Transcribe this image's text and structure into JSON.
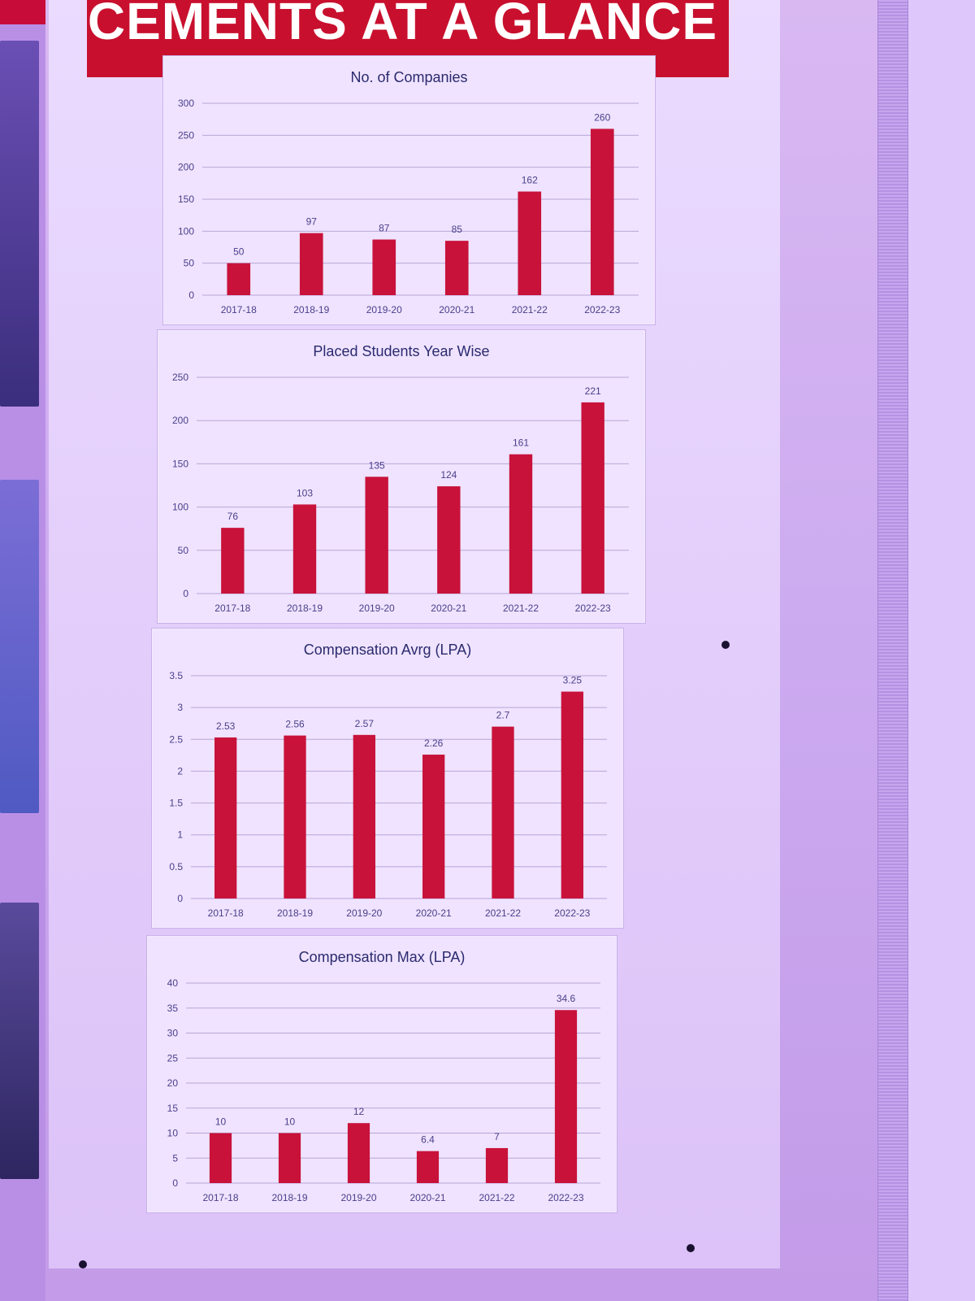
{
  "banner": {
    "title": "ACEMENTS AT A GLANCE"
  },
  "colors": {
    "bar": "#c8123a",
    "grid": "#b9a6d6",
    "axis_text": "#4a3f8a",
    "title_text": "#2b2a6e",
    "banner": "#c8102e"
  },
  "chart_data": [
    {
      "type": "bar",
      "title": "No. of Companies",
      "xlabel": "",
      "ylabel": "",
      "categories": [
        "2017-18",
        "2018-19",
        "2019-20",
        "2020-21",
        "2021-22",
        "2022-23"
      ],
      "values": [
        50,
        97,
        87,
        85,
        162,
        260
      ],
      "value_labels": [
        "50",
        "97",
        "87",
        "85",
        "162",
        "260"
      ],
      "ylim": [
        0,
        300
      ],
      "yticks": [
        "0",
        "50",
        "100",
        "150",
        "200",
        "250",
        "300"
      ],
      "grid": true
    },
    {
      "type": "bar",
      "title": "Placed Students Year Wise",
      "xlabel": "",
      "ylabel": "",
      "categories": [
        "2017-18",
        "2018-19",
        "2019-20",
        "2020-21",
        "2021-22",
        "2022-23"
      ],
      "values": [
        76,
        103,
        135,
        124,
        161,
        221
      ],
      "value_labels": [
        "76",
        "103",
        "135",
        "124",
        "161",
        "221"
      ],
      "ylim": [
        0,
        250
      ],
      "yticks": [
        "0",
        "50",
        "100",
        "150",
        "200",
        "250"
      ],
      "grid": true
    },
    {
      "type": "bar",
      "title": "Compensation  Avrg (LPA)",
      "xlabel": "",
      "ylabel": "",
      "categories": [
        "2017-18",
        "2018-19",
        "2019-20",
        "2020-21",
        "2021-22",
        "2022-23"
      ],
      "values": [
        2.53,
        2.56,
        2.57,
        2.26,
        2.7,
        3.25
      ],
      "value_labels": [
        "2.53",
        "2.56",
        "2.57",
        "2.26",
        "2.7",
        "3.25"
      ],
      "ylim": [
        0,
        3.5
      ],
      "yticks": [
        "0",
        "0.5",
        "1",
        "1.5",
        "2",
        "2.5",
        "3",
        "3.5"
      ],
      "grid": true
    },
    {
      "type": "bar",
      "title": "Compensation Max (LPA)",
      "xlabel": "",
      "ylabel": "",
      "categories": [
        "2017-18",
        "2018-19",
        "2019-20",
        "2020-21",
        "2021-22",
        "2022-23"
      ],
      "values": [
        10,
        10,
        12,
        6.4,
        7,
        34.6
      ],
      "value_labels": [
        "10",
        "10",
        "12",
        "6.4",
        "7",
        "34.6"
      ],
      "ylim": [
        0,
        40
      ],
      "yticks": [
        "0",
        "5",
        "10",
        "15",
        "20",
        "25",
        "30",
        "35",
        "40"
      ],
      "grid": true
    }
  ]
}
